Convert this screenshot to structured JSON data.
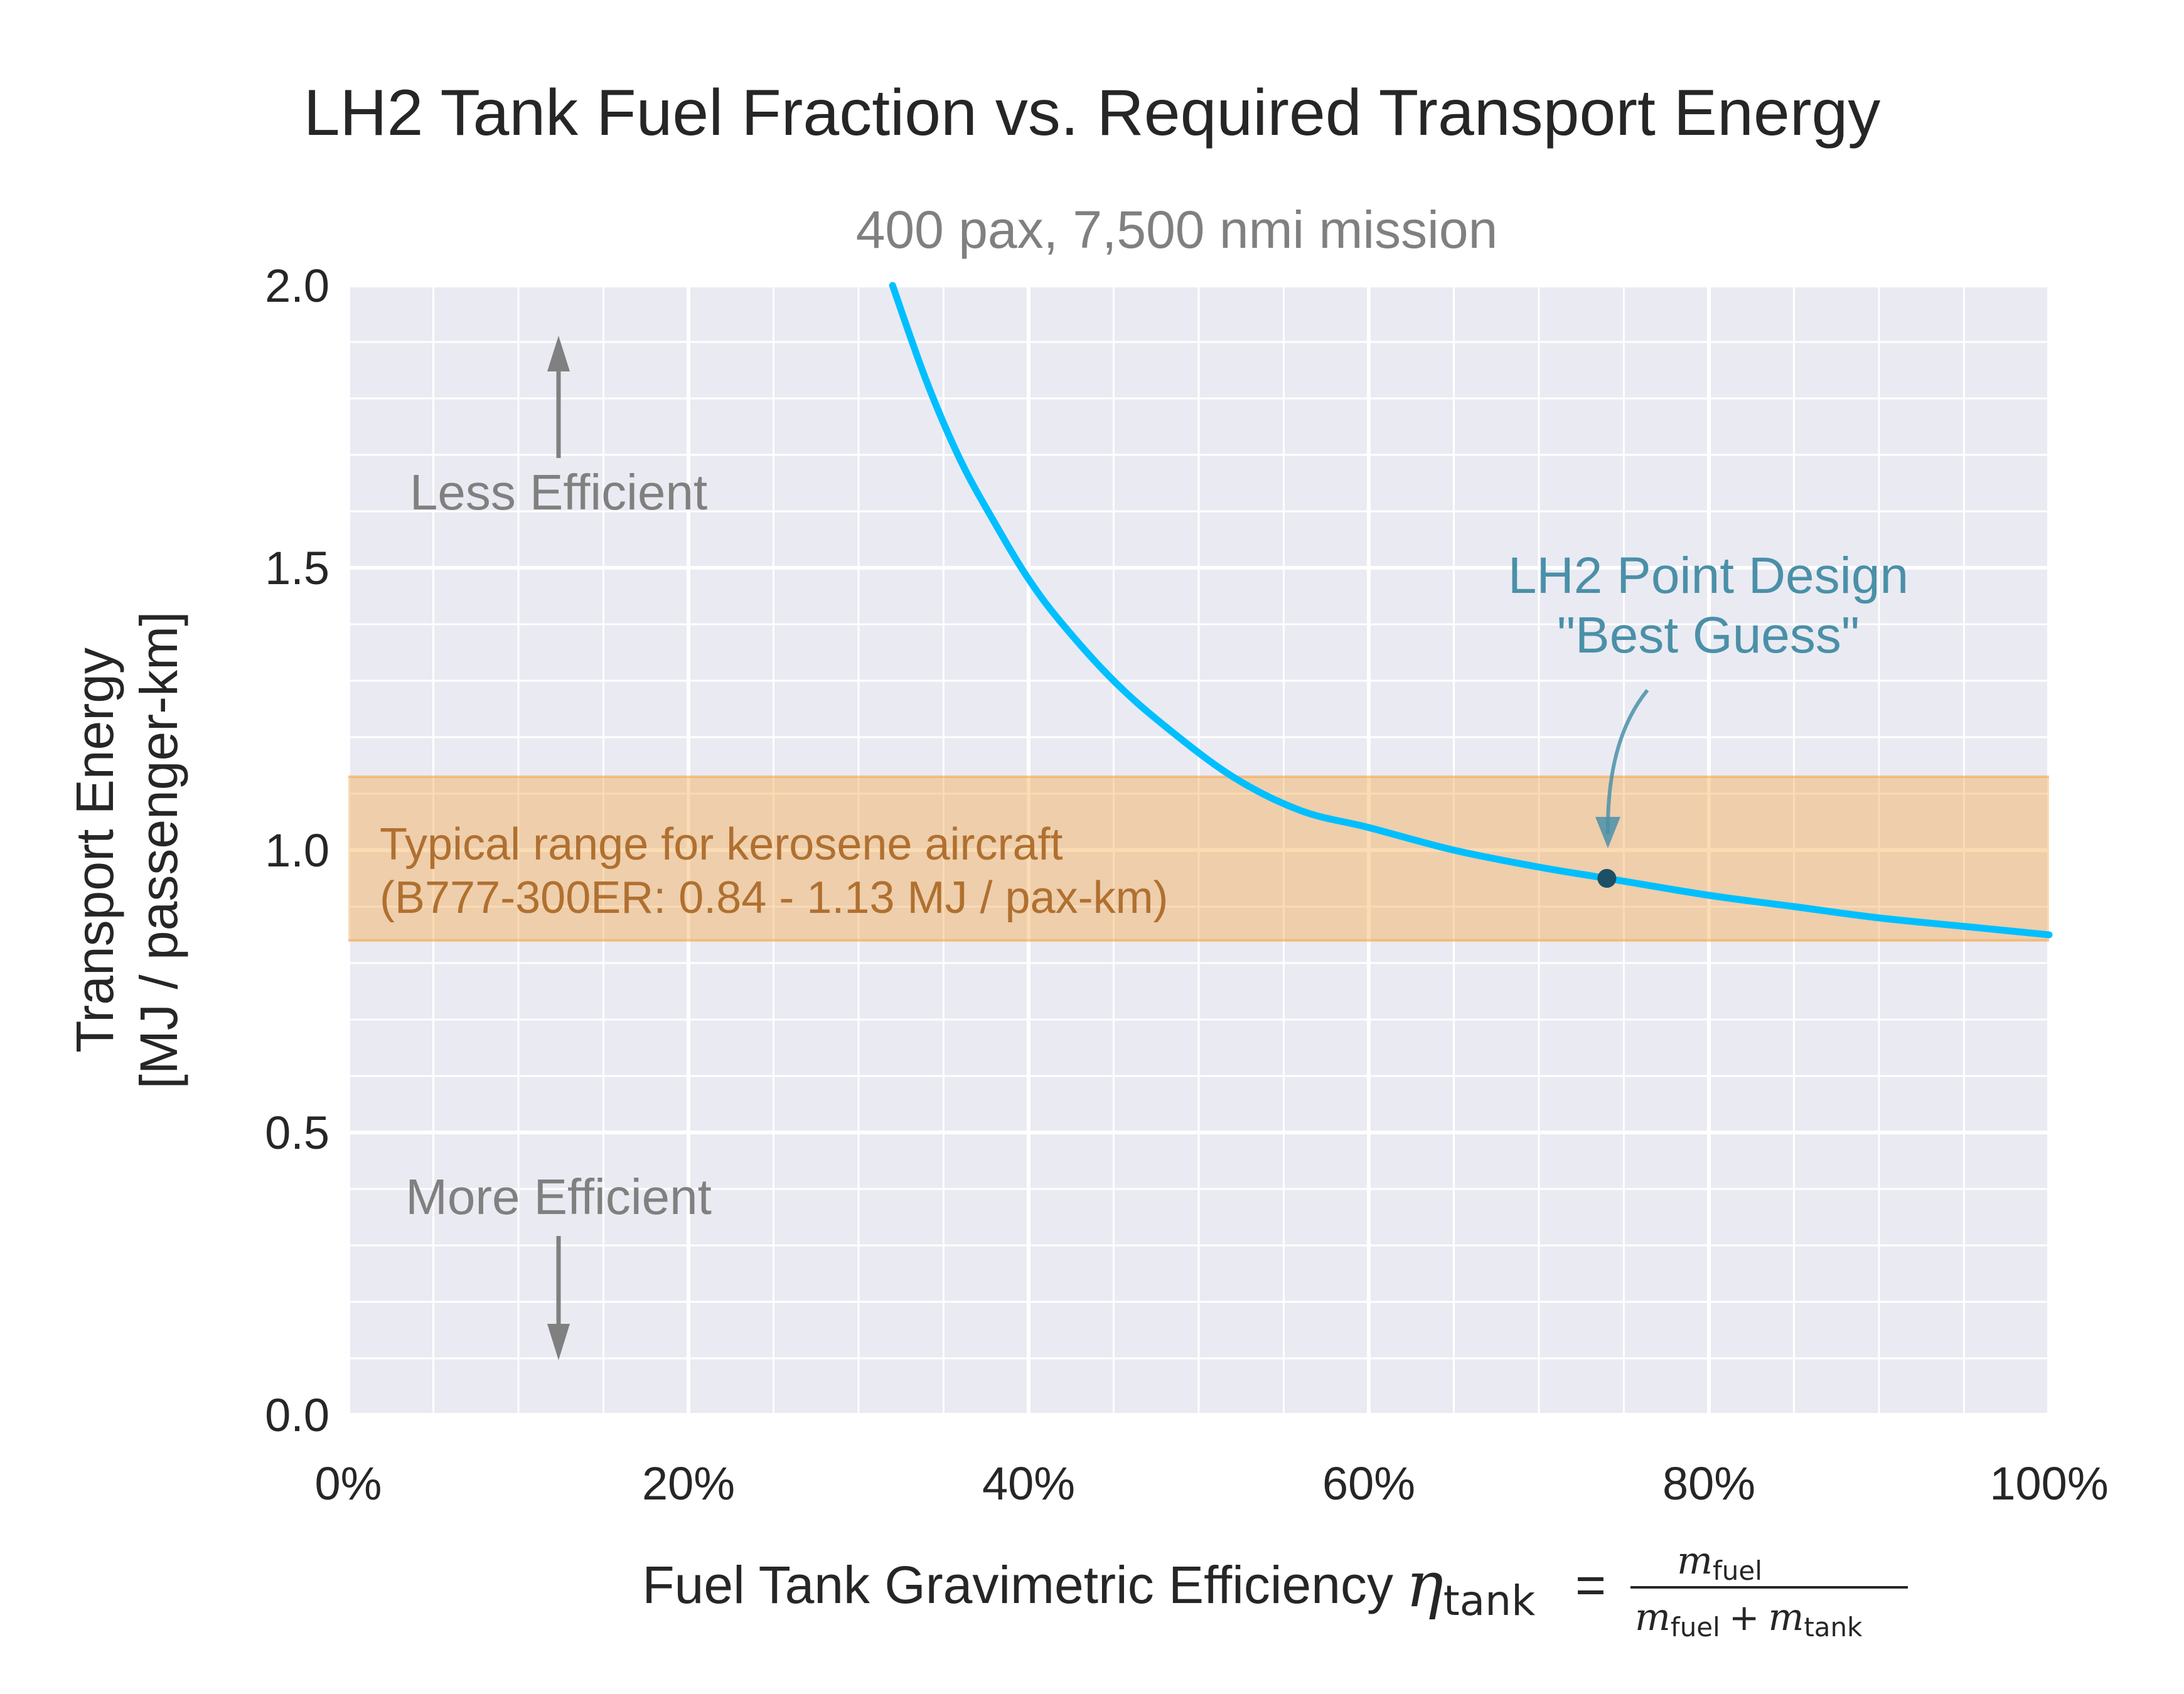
{
  "chart_data": {
    "type": "line",
    "title": "LH2 Tank Fuel Fraction vs. Required Transport Energy",
    "subtitle": "400 pax, 7,500 nmi mission",
    "xlabel": "Fuel Tank Gravimetric Efficiency",
    "xlabel_math": {
      "symbol": "η",
      "symbol_sub": "tank",
      "equals": "=",
      "numerator": "m",
      "numerator_sub": "fuel",
      "denominator_a": "m",
      "denominator_a_sub": "fuel",
      "denominator_plus": "+",
      "denominator_b": "m",
      "denominator_b_sub": "tank"
    },
    "ylabel_line1": "Transport Energy",
    "ylabel_line2": "[MJ / passenger-km]",
    "xlim": [
      0,
      1
    ],
    "ylim": [
      0,
      2
    ],
    "x_ticks": [
      {
        "value": 0.0,
        "label": "0%"
      },
      {
        "value": 0.2,
        "label": "20%"
      },
      {
        "value": 0.4,
        "label": "40%"
      },
      {
        "value": 0.6,
        "label": "60%"
      },
      {
        "value": 0.8,
        "label": "80%"
      },
      {
        "value": 1.0,
        "label": "100%"
      }
    ],
    "y_ticks": [
      {
        "value": 0.0,
        "label": "0.0"
      },
      {
        "value": 0.5,
        "label": "0.5"
      },
      {
        "value": 1.0,
        "label": "1.0"
      },
      {
        "value": 1.5,
        "label": "1.5"
      },
      {
        "value": 2.0,
        "label": "2.0"
      }
    ],
    "x_minor_step": 0.05,
    "y_minor_step": 0.1,
    "grid": true,
    "background": "#eaeaf2",
    "series": [
      {
        "color": "#00bfff",
        "x": [
          0.32,
          0.34,
          0.36,
          0.38,
          0.4,
          0.42,
          0.45,
          0.48,
          0.52,
          0.56,
          0.6,
          0.65,
          0.7,
          0.74,
          0.8,
          0.85,
          0.9,
          0.95,
          1.0
        ],
        "y": [
          2.0,
          1.83,
          1.69,
          1.58,
          1.48,
          1.4,
          1.3,
          1.22,
          1.13,
          1.07,
          1.04,
          1.0,
          0.97,
          0.95,
          0.92,
          0.9,
          0.88,
          0.865,
          0.85
        ]
      }
    ],
    "band": {
      "y_min": 0.84,
      "y_max": 1.13,
      "fill": "#f5a442",
      "fill_opacity": 0.4,
      "line1": "Typical range for kerosene aircraft",
      "line2": "(B777-300ER: 0.84 - 1.13 MJ / pax-km)"
    },
    "point": {
      "x": 0.74,
      "y": 0.95,
      "color": "#1d4f66",
      "line1": "LH2 Point Design",
      "line2": "\"Best Guess\""
    },
    "annotations": {
      "less": "Less Efficient",
      "more": "More Efficient",
      "arrow_color": "#808080"
    }
  }
}
